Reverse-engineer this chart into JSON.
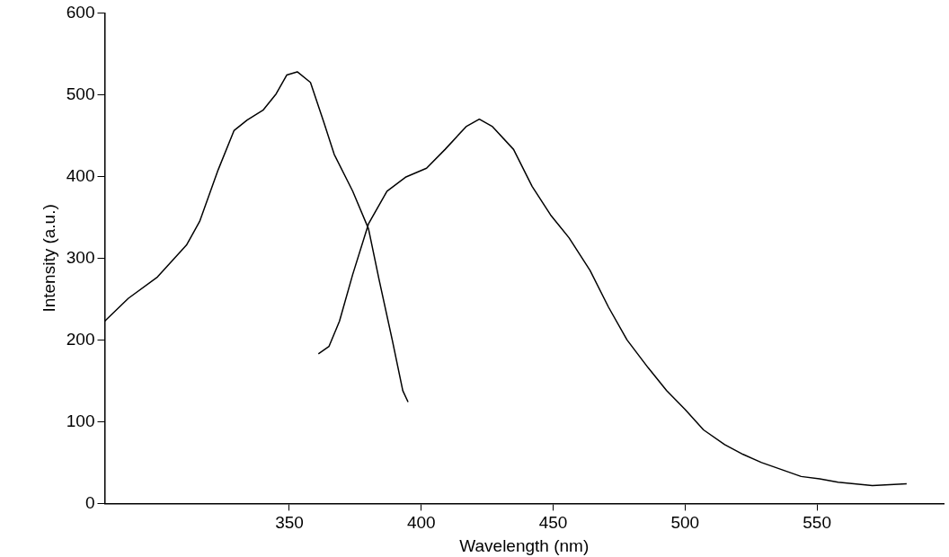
{
  "chart_data": {
    "type": "line",
    "xlabel": "Wavelength (nm)",
    "ylabel": "Intensity (a.u.)",
    "xlim": [
      280,
      598
    ],
    "ylim": [
      0,
      600
    ],
    "xticks": [
      350,
      400,
      450,
      500,
      550
    ],
    "yticks": [
      0,
      100,
      200,
      300,
      400,
      500,
      600
    ],
    "grid": false,
    "legend": false,
    "marker": "none",
    "line_style": "solid",
    "series": [
      {
        "color": "#000000",
        "x": [
          280,
          289,
          300,
          311,
          316,
          323,
          329,
          334,
          340,
          345,
          349,
          353,
          358,
          363,
          367,
          374,
          380,
          384,
          389,
          393,
          395
        ],
        "values": [
          223,
          251,
          277,
          316,
          345,
          408,
          456,
          469,
          481,
          501,
          524,
          528,
          515,
          467,
          427,
          382,
          336,
          274,
          200,
          138,
          124
        ]
      },
      {
        "color": "#000000",
        "x": [
          361,
          365,
          369,
          374,
          380,
          387,
          394,
          402,
          409,
          417,
          422,
          427,
          435,
          442,
          449,
          456,
          464,
          471,
          478,
          486,
          493,
          500,
          507,
          515,
          522,
          529,
          537,
          544,
          551,
          558,
          571,
          584
        ],
        "values": [
          183,
          192,
          223,
          280,
          342,
          382,
          399,
          410,
          433,
          461,
          470,
          461,
          433,
          388,
          353,
          325,
          285,
          240,
          200,
          166,
          138,
          115,
          90,
          72,
          60,
          50,
          41,
          33,
          30,
          26,
          22,
          24
        ]
      }
    ]
  }
}
